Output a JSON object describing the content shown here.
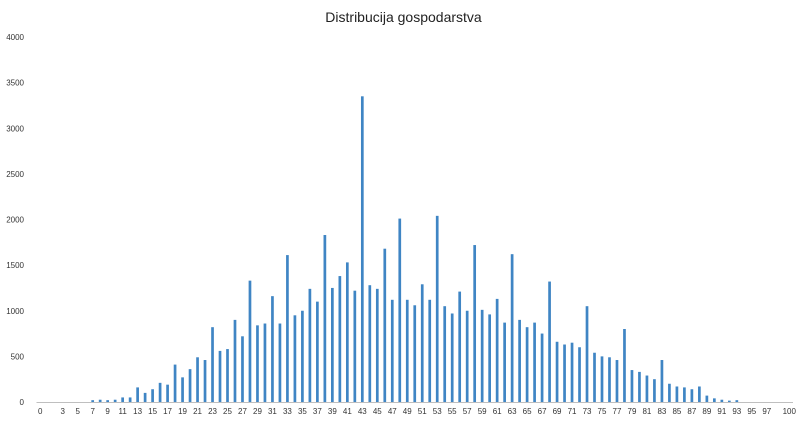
{
  "chart_data": {
    "type": "bar",
    "title": "Distribucija gospodarstva",
    "xlabel": "",
    "ylabel": "",
    "ylim": [
      0,
      4000
    ],
    "yticks": [
      0,
      500,
      1000,
      1500,
      2000,
      2500,
      3000,
      3500,
      4000
    ],
    "xticks": [
      0,
      3,
      5,
      7,
      9,
      11,
      13,
      15,
      17,
      19,
      21,
      23,
      25,
      27,
      29,
      31,
      33,
      35,
      37,
      39,
      41,
      43,
      45,
      47,
      49,
      51,
      53,
      55,
      57,
      59,
      61,
      63,
      65,
      67,
      69,
      71,
      73,
      75,
      77,
      79,
      81,
      83,
      85,
      87,
      89,
      91,
      93,
      95,
      97,
      100
    ],
    "categories": [
      0,
      1,
      2,
      3,
      4,
      5,
      6,
      7,
      8,
      9,
      10,
      11,
      12,
      13,
      14,
      15,
      16,
      17,
      18,
      19,
      20,
      21,
      22,
      23,
      24,
      25,
      26,
      27,
      28,
      29,
      30,
      31,
      32,
      33,
      34,
      35,
      36,
      37,
      38,
      39,
      40,
      41,
      42,
      43,
      44,
      45,
      46,
      47,
      48,
      49,
      50,
      51,
      52,
      53,
      54,
      55,
      56,
      57,
      58,
      59,
      60,
      61,
      62,
      63,
      64,
      65,
      66,
      67,
      68,
      69,
      70,
      71,
      72,
      73,
      74,
      75,
      76,
      77,
      78,
      79,
      80,
      81,
      82,
      83,
      84,
      85,
      86,
      87,
      88,
      89,
      90,
      91,
      92,
      93,
      94,
      95,
      96,
      97,
      98,
      99,
      100
    ],
    "values": [
      0,
      0,
      0,
      0,
      0,
      0,
      0,
      20,
      25,
      20,
      25,
      50,
      50,
      160,
      100,
      140,
      210,
      190,
      410,
      270,
      360,
      490,
      460,
      820,
      560,
      580,
      900,
      720,
      1330,
      840,
      860,
      1160,
      860,
      1610,
      950,
      1000,
      1240,
      1100,
      1830,
      1250,
      1380,
      1530,
      1220,
      3350,
      1280,
      1240,
      1680,
      1120,
      2010,
      1120,
      1060,
      1290,
      1120,
      2040,
      1050,
      970,
      1210,
      1000,
      1720,
      1010,
      960,
      1130,
      870,
      1620,
      900,
      820,
      870,
      750,
      1320,
      660,
      630,
      650,
      600,
      1050,
      540,
      500,
      490,
      460,
      800,
      350,
      330,
      290,
      250,
      460,
      200,
      170,
      160,
      140,
      170,
      70,
      40,
      25,
      15,
      20,
      0,
      0,
      0,
      0,
      0,
      0,
      0
    ],
    "bar_color": "#3f85c4",
    "grid": false,
    "legend": "none"
  }
}
